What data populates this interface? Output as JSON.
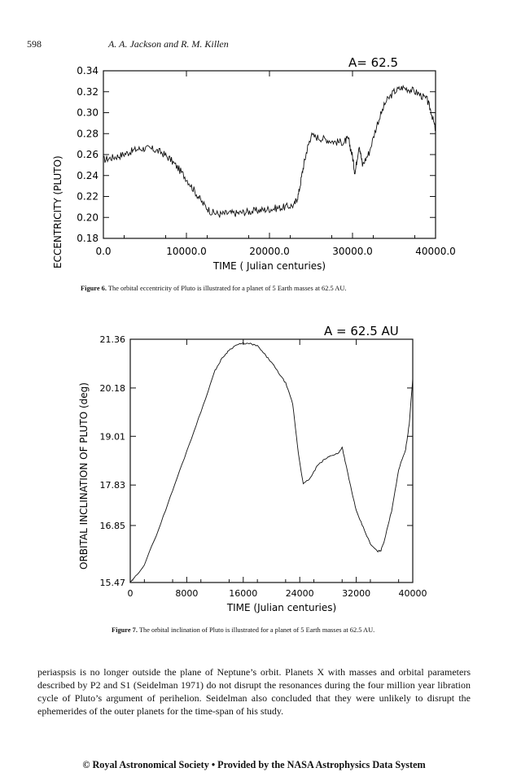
{
  "running_head": {
    "page_number": "598",
    "authors": "A. A. Jackson and R. M. Killen"
  },
  "figure6": {
    "annotation": "A= 62.5",
    "caption_label": "Figure 6.",
    "caption_text": "The orbital eccentricity of Pluto is illustrated for a planet of 5 Earth masses at 62.5 AU.",
    "chart_data": {
      "type": "line",
      "title": "A= 62.5",
      "xlabel": "TIME ( Julian centuries)",
      "ylabel": "ECCENTRICITY (PLUTO)",
      "xlim": [
        0,
        40000
      ],
      "ylim": [
        0.18,
        0.34
      ],
      "x_tick_labels": [
        "0.0",
        "10000.0",
        "20000.0",
        "30000.0",
        "40000.0"
      ],
      "y_tick_labels": [
        "0.34",
        "0.32",
        "0.30",
        "0.28",
        "0.26",
        "0.24",
        "0.22",
        "0.20",
        "0.18"
      ],
      "series": [
        {
          "name": "eccentricity",
          "x": [
            0,
            1000,
            2000,
            3000,
            4000,
            5000,
            6000,
            7000,
            8000,
            9000,
            10000,
            11000,
            12000,
            13000,
            14000,
            15000,
            16000,
            17000,
            18000,
            19000,
            20000,
            21000,
            22000,
            23000,
            23500,
            24000,
            24500,
            25000,
            26000,
            27000,
            28000,
            29000,
            29500,
            30000,
            30300,
            30800,
            31200,
            32000,
            33000,
            34000,
            35000,
            36000,
            37000,
            38000,
            39000,
            39500,
            40000
          ],
          "y": [
            0.255,
            0.257,
            0.259,
            0.262,
            0.265,
            0.266,
            0.265,
            0.262,
            0.256,
            0.247,
            0.237,
            0.225,
            0.213,
            0.205,
            0.203,
            0.204,
            0.204,
            0.205,
            0.206,
            0.207,
            0.208,
            0.209,
            0.21,
            0.212,
            0.222,
            0.245,
            0.264,
            0.278,
            0.276,
            0.274,
            0.272,
            0.272,
            0.275,
            0.258,
            0.242,
            0.27,
            0.25,
            0.262,
            0.29,
            0.31,
            0.32,
            0.324,
            0.322,
            0.318,
            0.312,
            0.3,
            0.283
          ]
        }
      ]
    }
  },
  "figure7": {
    "annotation": "A = 62.5 AU",
    "caption_label": "Figure 7.",
    "caption_text": "The orbital inclination of Pluto is illustrated for a planet of 5 Earth masses at 62.5 AU.",
    "chart_data": {
      "type": "line",
      "title": "A = 62.5 AU",
      "xlabel": "TIME (Julian centuries)",
      "ylabel": "ORBITAL INCLINATION OF PLUTO (deg)",
      "xlim": [
        0,
        40000
      ],
      "ylim": [
        15.47,
        21.36
      ],
      "x_tick_labels": [
        "0",
        "8000",
        "16000",
        "24000",
        "32000",
        "40000"
      ],
      "y_tick_labels": [
        "21.36",
        "20.18",
        "19.01",
        "17.83",
        "16.85",
        "15.47"
      ],
      "series": [
        {
          "name": "inclination",
          "x": [
            0,
            500,
            2000,
            4000,
            6000,
            8000,
            10000,
            12000,
            13000,
            14000,
            15000,
            16000,
            17000,
            18000,
            19000,
            20000,
            21000,
            22000,
            23000,
            23800,
            24500,
            25500,
            26500,
            27500,
            28500,
            29500,
            30000,
            30500,
            31200,
            32000,
            33000,
            34000,
            35000,
            35500,
            36000,
            37000,
            38000,
            39000,
            39500,
            40000
          ],
          "y": [
            15.47,
            15.56,
            15.9,
            16.75,
            17.7,
            18.65,
            19.6,
            20.6,
            20.9,
            21.1,
            21.22,
            21.26,
            21.25,
            21.2,
            21.0,
            20.8,
            20.55,
            20.3,
            19.8,
            18.6,
            17.85,
            18.0,
            18.3,
            18.45,
            18.55,
            18.6,
            18.75,
            18.35,
            17.8,
            17.2,
            16.8,
            16.4,
            16.22,
            16.25,
            16.5,
            17.2,
            18.2,
            18.7,
            19.3,
            20.4
          ]
        }
      ]
    }
  },
  "body_text": "periaspsis is no longer outside the plane of Neptune’s orbit. Planets X with masses and orbital parameters described by P2 and S1 (Seidelman 1971) do not disrupt the resonances during the four million year libration cycle of Pluto’s argument of perihelion. Seidelman also concluded that they were unlikely to disrupt the ephemerides of the outer planets for the time-span of his study.",
  "footer": "© Royal Astronomical Society • Provided by the NASA Astrophysics Data System"
}
